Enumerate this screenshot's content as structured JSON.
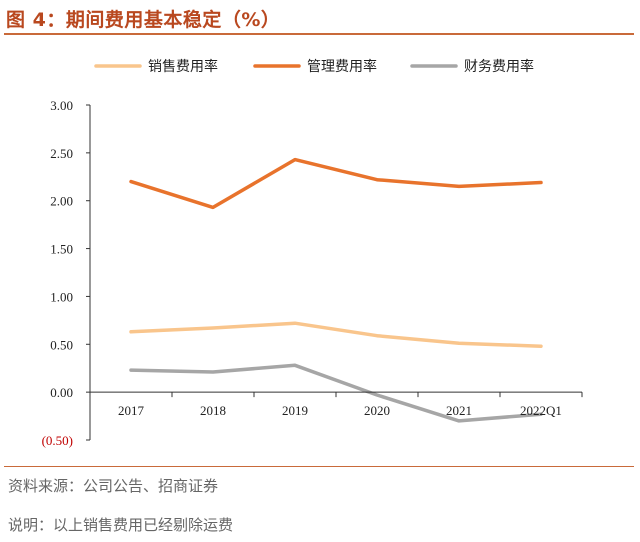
{
  "header": {
    "title": "图 4：期间费用基本稳定（%）"
  },
  "footer": {
    "source": "资料来源：公司公告、招商证券",
    "remark": "说明：以上销售费用已经剔除运费"
  },
  "chart_data": {
    "type": "line",
    "x": [
      "2017",
      "2018",
      "2019",
      "2020",
      "2021",
      "2022Q1"
    ],
    "ylim": [
      -0.5,
      3.0
    ],
    "yticks": [
      3.0,
      2.5,
      2.0,
      1.5,
      1.0,
      0.5,
      0.0,
      -0.5
    ],
    "ytick_labels": [
      "3.00",
      "2.50",
      "2.00",
      "1.50",
      "1.00",
      "0.50",
      "0.00",
      "(0.50)"
    ],
    "grid": false,
    "legend": "top",
    "series": [
      {
        "name": "销售费用率",
        "color": "#f9c58c",
        "values": [
          0.63,
          0.67,
          0.72,
          0.59,
          0.51,
          0.48
        ]
      },
      {
        "name": "管理费用率",
        "color": "#e8732c",
        "values": [
          2.2,
          1.93,
          2.43,
          2.22,
          2.15,
          2.19
        ]
      },
      {
        "name": "财务费用率",
        "color": "#a6a6a6",
        "values": [
          0.23,
          0.21,
          0.28,
          -0.03,
          -0.3,
          -0.23
        ]
      }
    ]
  }
}
